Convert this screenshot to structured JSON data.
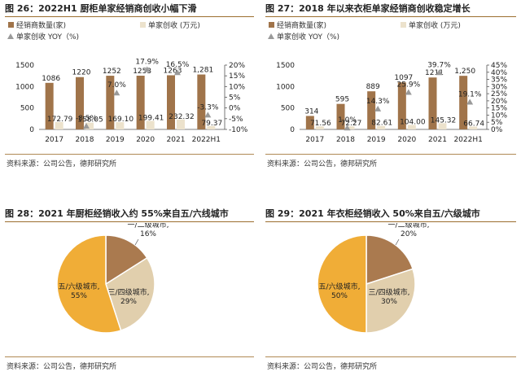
{
  "colors": {
    "dealers": "#a0744a",
    "revenue": "#ece2cc",
    "yoy": "#9a9a9a",
    "axis": "#222222",
    "pie_a": "#aa7a4f",
    "pie_b": "#e1cfad",
    "pie_c": "#f0ad37"
  },
  "source_text": "资料来源：公司公告，德邦研究所",
  "chart_data": [
    {
      "type": "bar",
      "title": "图 26：2022H1 厨柜单家经销商创收小幅下滑",
      "legend": [
        "经销商数量(家)",
        "单家创收  (万元)",
        "单家创收 YOY（%)"
      ],
      "categories": [
        "2017",
        "2018",
        "2019",
        "2020",
        "2021",
        "2022H1"
      ],
      "series": [
        {
          "name": "经销商数量(家)",
          "values": [
            1086,
            1220,
            1252,
            1253,
            1263,
            1281
          ],
          "labels": [
            "1086",
            "1220",
            "1252",
            "1253",
            "1263",
            "1,281"
          ],
          "axis": "left"
        },
        {
          "name": "单家创收  (万元)",
          "values": [
            172.79,
            158.05,
            169.1,
            199.41,
            232.32,
            79.37
          ],
          "labels": [
            "172.79",
            "158.05",
            "169.10",
            "199.41",
            "232.32",
            "79.37"
          ],
          "axis": "left"
        },
        {
          "name": "单家创收 YOY（%)",
          "values": [
            null,
            -8.5,
            7.0,
            17.9,
            16.5,
            -3.3
          ],
          "labels": [
            "",
            "-8.5%",
            "7.0%",
            "17.9%",
            "16.5%",
            "-3.3%"
          ],
          "axis": "right"
        }
      ],
      "y_left": {
        "min": 0,
        "max": 1500,
        "ticks": [
          "0",
          "500",
          "1000",
          "1500"
        ]
      },
      "y_right": {
        "min": -10,
        "max": 20,
        "ticks": [
          "-10%",
          "-5%",
          "0%",
          "5%",
          "10%",
          "15%",
          "20%"
        ]
      }
    },
    {
      "type": "bar",
      "title": "图 27：2018 年以来衣柜单家经销商创收稳定增长",
      "legend": [
        "经销商数量(家)",
        "单家创收  (万元)",
        "单家创收 YOY（%)"
      ],
      "categories": [
        "2017",
        "2018",
        "2019",
        "2020",
        "2021",
        "2022H1"
      ],
      "series": [
        {
          "name": "经销商数量(家)",
          "values": [
            314,
            595,
            889,
            1097,
            1211,
            1250
          ],
          "labels": [
            "314",
            "595",
            "889",
            "1097",
            "1211",
            "1,250"
          ],
          "axis": "left"
        },
        {
          "name": "单家创收  (万元)",
          "values": [
            71.56,
            72.27,
            82.61,
            104.0,
            145.32,
            66.74
          ],
          "labels": [
            "71.56",
            "72.27",
            "82.61",
            "104.00",
            "145.32",
            "66.74"
          ],
          "axis": "left"
        },
        {
          "name": "单家创收 YOY（%)",
          "values": [
            null,
            1.0,
            14.3,
            25.9,
            39.7,
            19.1
          ],
          "labels": [
            "",
            "1.0%",
            "14.3%",
            "25.9%",
            "39.7%",
            "19.1%"
          ],
          "axis": "right"
        }
      ],
      "y_left": {
        "min": 0,
        "max": 1500,
        "ticks": [
          "0",
          "500",
          "1000",
          "1500"
        ]
      },
      "y_right": {
        "min": 0,
        "max": 45,
        "ticks": [
          "0%",
          "5%",
          "10%",
          "15%",
          "20%",
          "25%",
          "30%",
          "35%",
          "40%",
          "45%"
        ]
      }
    },
    {
      "type": "pie",
      "title": "图 28：2021 年厨柜经销收入约 55%来自五/六线城市",
      "slices": [
        {
          "name": "一/二级城市",
          "value": 16,
          "label": "16%"
        },
        {
          "name": "三/四级城市",
          "value": 29,
          "label": "29%"
        },
        {
          "name": "五/六级城市",
          "value": 55,
          "label": "55%"
        }
      ]
    },
    {
      "type": "pie",
      "title": "图 29：2021 年衣柜经销收入 50%来自五/六级城市",
      "slices": [
        {
          "name": "一/二级城市",
          "value": 20,
          "label": "20%"
        },
        {
          "name": "三/四级城市",
          "value": 30,
          "label": "30%"
        },
        {
          "name": "五/六级城市",
          "value": 50,
          "label": "50%"
        }
      ]
    }
  ]
}
